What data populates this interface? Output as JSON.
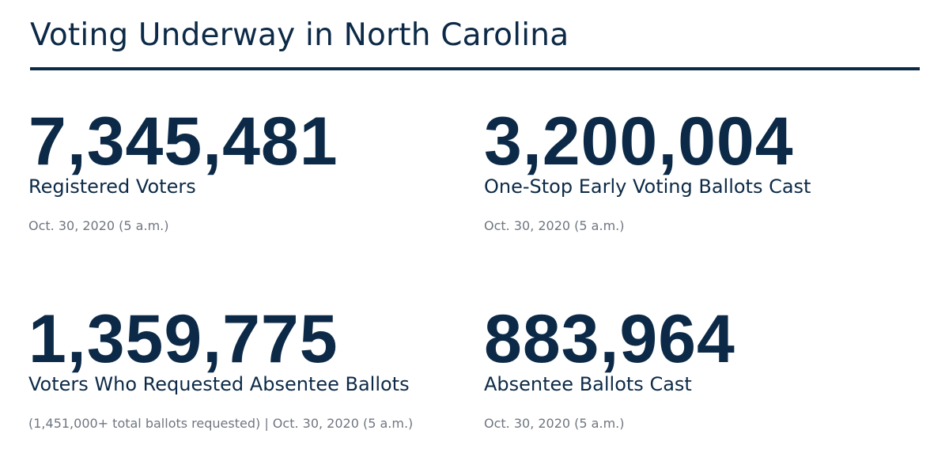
{
  "title": "Voting Underway in North Carolina",
  "stats": [
    {
      "number": "7,345,481",
      "label": "Registered Voters",
      "note": "Oct. 30, 2020 (5 a.m.)"
    },
    {
      "number": "3,200,004",
      "label": "One-Stop Early Voting Ballots Cast",
      "note": "Oct. 30, 2020 (5 a.m.)"
    },
    {
      "number": "1,359,775",
      "label": "Voters Who Requested Absentee Ballots",
      "note": "(1,451,000+ total ballots requested) | Oct. 30, 2020 (5 a.m.)"
    },
    {
      "number": "883,964",
      "label": "Absentee Ballots Cast",
      "note": "Oct. 30, 2020 (5 a.m.)"
    }
  ],
  "colors": {
    "primary": "#0c2a47",
    "note": "#6f7680",
    "background": "#ffffff"
  }
}
